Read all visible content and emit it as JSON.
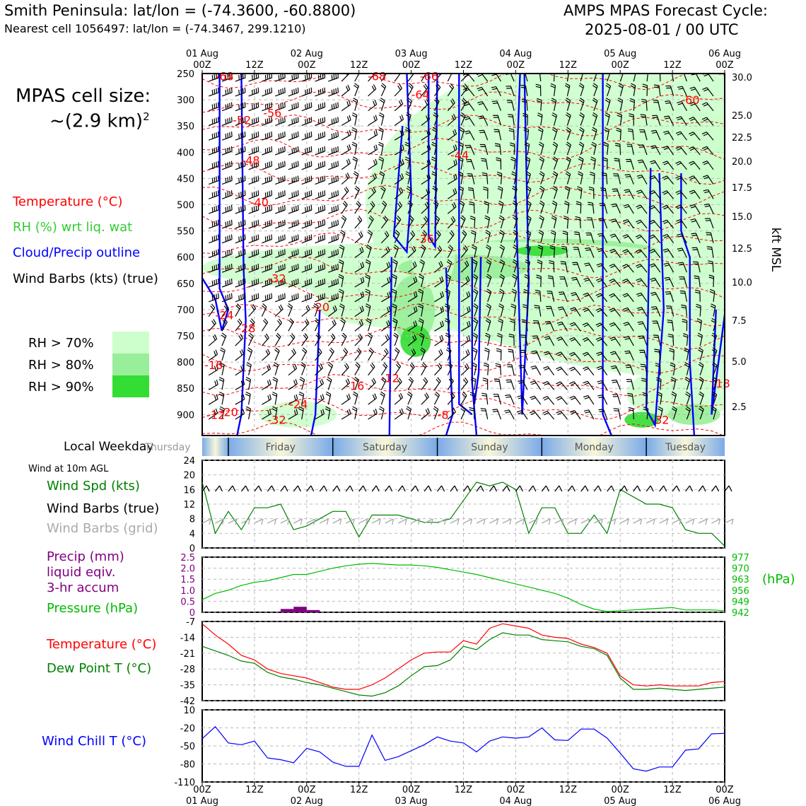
{
  "header": {
    "title_left": "Smith Peninsula: lat/lon = (-74.3600, -60.8800)",
    "subtitle_left": "Nearest cell 1056497: lat/lon = (-74.3467, 299.1210)",
    "title_right_1": "AMPS MPAS Forecast Cycle:",
    "title_right_2": "2025-08-01 / 00 UTC"
  },
  "cell_size": {
    "line1": "MPAS cell size:",
    "line2": "~(2.9 km)",
    "sup": "2"
  },
  "legend_upper": {
    "temperature": "Temperature (°C)",
    "rh": "RH (%) wrt liq. wat",
    "cloud": "Cloud/Precip outline",
    "wind": "Wind Barbs (kts) (true)",
    "rh70": "RH > 70%",
    "rh80": "RH > 80%",
    "rh90": "RH > 90%"
  },
  "colors": {
    "temperature": "#ff0000",
    "rh_label": "#33cc33",
    "cloud": "#0000ff",
    "rh70": "#ccffcc",
    "rh80": "#99ee99",
    "rh90": "#33dd33",
    "precip": "#800080",
    "pressure": "#00bb00",
    "dewpoint": "#008000",
    "windchill": "#0000ff",
    "barb_grid": "#aaaaaa"
  },
  "weekday": {
    "label": "Local Weekday",
    "days": [
      "Thursday",
      "Friday",
      "Saturday",
      "Sunday",
      "Monday",
      "Tuesday"
    ]
  },
  "legend_lower": {
    "wind_at": "Wind at 10m AGL",
    "wind_spd": "Wind Spd (kts)",
    "barbs_true": "Wind Barbs (true)",
    "barbs_grid": "Wind Barbs (grid)",
    "precip_1": "Precip (mm)",
    "precip_2": "liquid eqiv.",
    "precip_3": "3-hr accum",
    "pressure": "Pressure (hPa)",
    "pressure_unit": "(hPa)",
    "temperature": "Temperature (°C)",
    "dewpoint": "Dew Point T (°C)",
    "windchill": "Wind Chill T (°C)"
  },
  "chart_data": [
    {
      "type": "heatmap",
      "name": "time-height cross section",
      "x_ticks": [
        "00Z",
        "12Z",
        "00Z",
        "12Z",
        "00Z",
        "12Z",
        "00Z",
        "12Z",
        "00Z",
        "12Z",
        "00Z"
      ],
      "x_dates": [
        "01 Aug",
        "02 Aug",
        "03 Aug",
        "04 Aug",
        "05 Aug",
        "06 Aug"
      ],
      "x_range_hours": [
        0,
        120
      ],
      "y_label_right": "kft MSL",
      "y_ticks_pressure": [
        250,
        300,
        350,
        400,
        450,
        500,
        550,
        600,
        650,
        700,
        750,
        800,
        850,
        900
      ],
      "y_ticks_kft": [
        "30.0",
        "25.0",
        "22.5",
        "20.0",
        "17.5",
        "15.0",
        "12.5",
        "10.0",
        "7.5",
        "5.0",
        "2.5"
      ],
      "y_range_hpa": [
        250,
        940
      ],
      "temperature_labels": [
        {
          "t": 3,
          "p": 255,
          "v": "-68"
        },
        {
          "t": 38,
          "p": 255,
          "v": "-68"
        },
        {
          "t": 48,
          "p": 290,
          "v": "-64"
        },
        {
          "t": 50,
          "p": 255,
          "v": "-66"
        },
        {
          "t": 110,
          "p": 300,
          "v": "-60"
        },
        {
          "t": 7,
          "p": 338,
          "v": "-52"
        },
        {
          "t": 14,
          "p": 325,
          "v": "-56"
        },
        {
          "t": 9,
          "p": 415,
          "v": "-48"
        },
        {
          "t": 11,
          "p": 495,
          "v": "-40"
        },
        {
          "t": 15,
          "p": 640,
          "v": "-32"
        },
        {
          "t": 25,
          "p": 695,
          "v": "-20"
        },
        {
          "t": 3,
          "p": 710,
          "v": "-24"
        },
        {
          "t": 8,
          "p": 735,
          "v": "-28"
        },
        {
          "t": 0.5,
          "p": 805,
          "v": "-16"
        },
        {
          "t": 33,
          "p": 845,
          "v": "-16"
        },
        {
          "t": 41,
          "p": 830,
          "v": "-12"
        },
        {
          "t": 54,
          "p": 900,
          "v": "-8"
        },
        {
          "t": 57,
          "p": 405,
          "v": "-44"
        },
        {
          "t": 49,
          "p": 565,
          "v": "-36"
        },
        {
          "t": 117,
          "p": 840,
          "v": "-18"
        },
        {
          "t": 1,
          "p": 900,
          "v": "-12"
        },
        {
          "t": 4,
          "p": 895,
          "v": "-20"
        },
        {
          "t": 20,
          "p": 880,
          "v": "-24"
        },
        {
          "t": 15,
          "p": 910,
          "v": "-32"
        },
        {
          "t": 103,
          "p": 910,
          "v": "-32"
        }
      ]
    },
    {
      "type": "line",
      "name": "10m wind speed",
      "ylim": [
        0,
        24
      ],
      "y_ticks": [
        0,
        4,
        8,
        12,
        16,
        20,
        24
      ],
      "x": [
        0,
        3,
        6,
        9,
        12,
        15,
        18,
        21,
        24,
        27,
        30,
        33,
        36,
        39,
        42,
        45,
        48,
        51,
        54,
        57,
        60,
        63,
        66,
        69,
        72,
        75,
        78,
        81,
        84,
        87,
        90,
        93,
        96,
        99,
        102,
        105,
        108,
        111,
        114,
        117,
        120
      ],
      "series": [
        {
          "name": "Wind Spd (kts)",
          "values": [
            18,
            4,
            10,
            5,
            11,
            11,
            12,
            5,
            6,
            8,
            10,
            10,
            3,
            9,
            9,
            9,
            8,
            7,
            7,
            8,
            13,
            18,
            17,
            18,
            16,
            4,
            11,
            11,
            4,
            4,
            9,
            4,
            16,
            14,
            12,
            12,
            11,
            5,
            4,
            4,
            0.5
          ]
        }
      ]
    },
    {
      "type": "bar",
      "name": "precipitation and pressure",
      "ylim_precip": [
        0,
        2.5
      ],
      "y_ticks_precip": [
        0,
        0.5,
        1.0,
        1.5,
        2.0,
        2.5
      ],
      "ylim_pressure": [
        942,
        977
      ],
      "y_ticks_pressure": [
        942,
        949,
        956,
        963,
        970,
        977
      ],
      "precip": [
        {
          "t0": 18,
          "t1": 21,
          "v": 0.15
        },
        {
          "t0": 21,
          "t1": 24,
          "v": 0.25
        },
        {
          "t0": 24,
          "t1": 27,
          "v": 0.1
        }
      ],
      "x": [
        0,
        3,
        6,
        9,
        12,
        15,
        18,
        21,
        24,
        27,
        30,
        33,
        36,
        39,
        42,
        45,
        48,
        51,
        54,
        57,
        60,
        63,
        66,
        69,
        72,
        75,
        78,
        81,
        84,
        87,
        90,
        93,
        96,
        99,
        102,
        105,
        108,
        111,
        114,
        117,
        120
      ],
      "series": [
        {
          "name": "Pressure (hPa)",
          "values": [
            950,
            954,
            956,
            959,
            961,
            962,
            964,
            966,
            966,
            968,
            970,
            971.5,
            972.5,
            973,
            972.5,
            972,
            972,
            971.5,
            970.5,
            969,
            967.5,
            966,
            964,
            962,
            960,
            958,
            956,
            954,
            951,
            947,
            944,
            942.5,
            943,
            943.5,
            944,
            944.5,
            945,
            943.5,
            943.5,
            943.5,
            943
          ]
        }
      ]
    },
    {
      "type": "line",
      "name": "temperature and dew point",
      "ylim": [
        -42,
        -7
      ],
      "y_ticks": [
        -7,
        -14,
        -21,
        -28,
        -35,
        -42
      ],
      "x": [
        0,
        3,
        6,
        9,
        12,
        15,
        18,
        21,
        24,
        27,
        30,
        33,
        36,
        39,
        42,
        45,
        48,
        51,
        54,
        57,
        60,
        63,
        66,
        69,
        72,
        75,
        78,
        81,
        84,
        87,
        90,
        93,
        96,
        99,
        102,
        105,
        108,
        111,
        114,
        117,
        120
      ],
      "series": [
        {
          "name": "Temperature (°C)",
          "values": [
            -8,
            -13,
            -17,
            -22,
            -24,
            -28,
            -30,
            -31,
            -32,
            -34,
            -36,
            -37,
            -37,
            -35,
            -32,
            -28,
            -24,
            -21,
            -20.5,
            -20.5,
            -15.5,
            -17,
            -10,
            -8,
            -9,
            -10,
            -13,
            -14,
            -14.5,
            -17,
            -18.5,
            -21,
            -31,
            -35,
            -35.5,
            -35,
            -35.5,
            -35.5,
            -35.5,
            -34,
            -33.5
          ]
        },
        {
          "name": "Dew Point T (°C)",
          "values": [
            -18,
            -20,
            -22,
            -24.5,
            -25.5,
            -29.5,
            -31.5,
            -32.5,
            -34,
            -35,
            -36.5,
            -38,
            -39.5,
            -40,
            -38.5,
            -35.5,
            -31,
            -27,
            -26.5,
            -24,
            -18,
            -19.5,
            -15,
            -12,
            -13,
            -13,
            -15,
            -15.5,
            -16,
            -18,
            -19,
            -22,
            -32,
            -37,
            -37,
            -36.5,
            -37,
            -37.5,
            -37,
            -36.5,
            -36
          ]
        }
      ]
    },
    {
      "type": "line",
      "name": "wind chill",
      "ylim": [
        -110,
        10
      ],
      "y_ticks": [
        10,
        -20,
        -50,
        -80,
        -110
      ],
      "x": [
        0,
        3,
        6,
        9,
        12,
        15,
        18,
        21,
        24,
        27,
        30,
        33,
        36,
        39,
        42,
        45,
        48,
        51,
        54,
        57,
        60,
        63,
        66,
        69,
        72,
        75,
        78,
        81,
        84,
        87,
        90,
        93,
        96,
        99,
        102,
        105,
        108,
        111,
        114,
        117,
        120
      ],
      "series": [
        {
          "name": "Wind Chill T (°C)",
          "values": [
            -38,
            -18,
            -45,
            -48,
            -42,
            -70,
            -73,
            -78,
            -54,
            -60,
            -77,
            -84,
            -84,
            -32,
            -74,
            -68,
            -58,
            -48,
            -35,
            -42,
            -45,
            -60,
            -42,
            -35,
            -37,
            -35,
            -20,
            -40,
            -41,
            -22,
            -22,
            -37,
            -62,
            -88,
            -92,
            -85,
            -85,
            -57,
            -55,
            -30,
            -29
          ]
        }
      ]
    }
  ]
}
